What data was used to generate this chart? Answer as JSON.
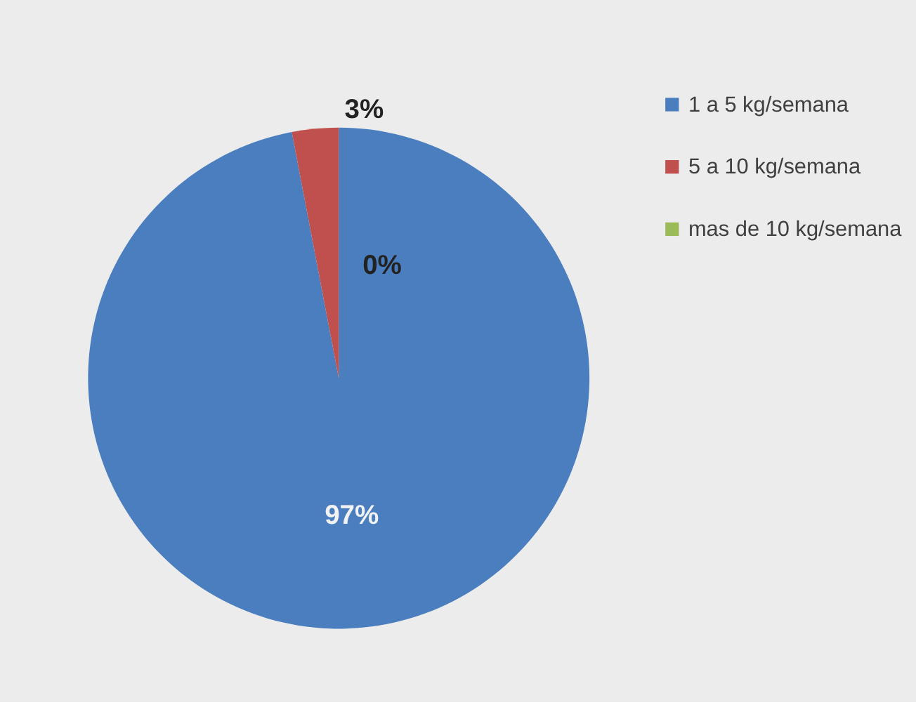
{
  "chart_data": {
    "type": "pie",
    "categories": [
      "1 a 5 kg/semana",
      "5 a 10 kg/semana",
      "mas de 10 kg/semana"
    ],
    "values": [
      97,
      3,
      0
    ],
    "colors": [
      "#4a7ebf",
      "#c0504d",
      "#9bbb59"
    ],
    "value_labels": [
      "97%",
      "3%",
      "0%"
    ],
    "legend": "right"
  }
}
